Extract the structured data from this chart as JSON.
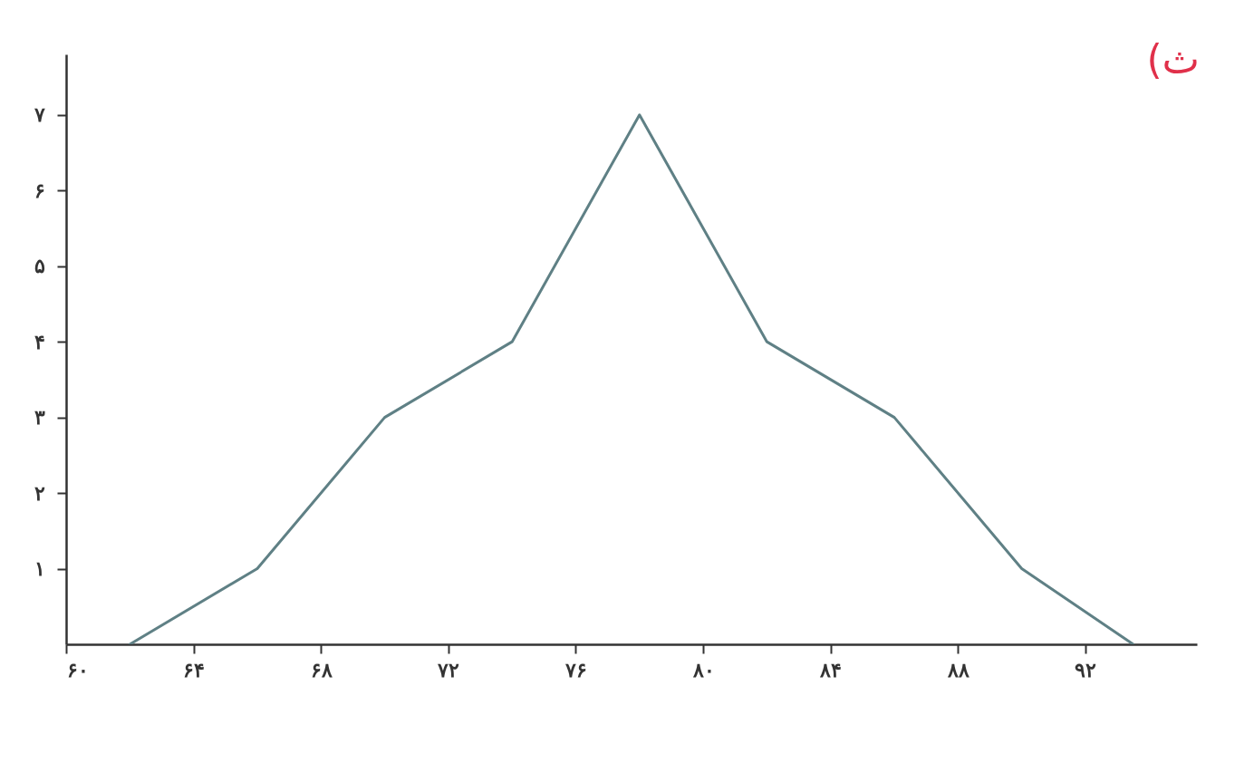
{
  "chart_data": {
    "type": "line",
    "title": "ث)",
    "x": [
      62,
      66,
      70,
      74,
      78,
      82,
      86,
      90,
      93.5
    ],
    "series": [
      {
        "color": "#5f8085",
        "values": [
          0,
          1,
          3,
          4,
          7,
          4,
          3,
          1,
          0
        ]
      }
    ],
    "xlim": [
      60,
      95.5
    ],
    "ylim": [
      0,
      7.8
    ],
    "xticks": [
      {
        "value": 60,
        "label": "۶۰"
      },
      {
        "value": 64,
        "label": "۶۴"
      },
      {
        "value": 68,
        "label": "۶۸"
      },
      {
        "value": 72,
        "label": "۷۲"
      },
      {
        "value": 76,
        "label": "۷۶"
      },
      {
        "value": 80,
        "label": "۸۰"
      },
      {
        "value": 84,
        "label": "۸۴"
      },
      {
        "value": 88,
        "label": "۸۸"
      },
      {
        "value": 92,
        "label": "۹۲"
      }
    ],
    "yticks": [
      {
        "value": 1,
        "label": "۱"
      },
      {
        "value": 2,
        "label": "۲"
      },
      {
        "value": 3,
        "label": "۳"
      },
      {
        "value": 4,
        "label": "۴"
      },
      {
        "value": 5,
        "label": "۵"
      },
      {
        "value": 6,
        "label": "۶"
      },
      {
        "value": 7,
        "label": "۷"
      }
    ],
    "grid": false,
    "marker": "none",
    "line_style": "solid"
  }
}
